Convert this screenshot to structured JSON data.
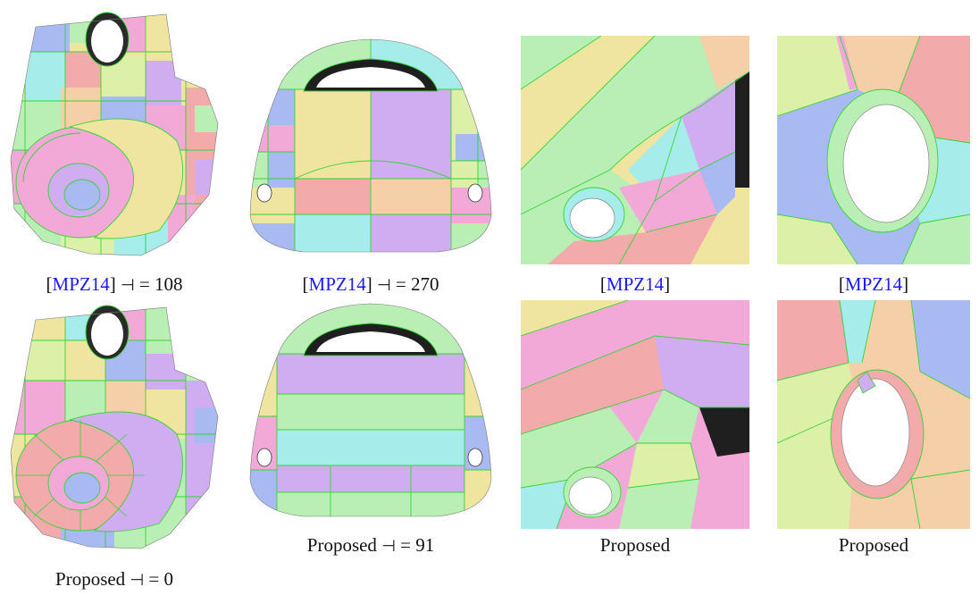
{
  "captions": {
    "r1c1": {
      "cite": "MPZ14",
      "symbol": "⊣",
      "value": "= 108"
    },
    "r1c2": {
      "cite": "MPZ14",
      "symbol": "⊣",
      "value": "= 270"
    },
    "r1c3": {
      "cite": "MPZ14"
    },
    "r1c4": {
      "cite": "MPZ14"
    },
    "r2c1": {
      "method": "Proposed",
      "symbol": "⊣",
      "value": "= 0"
    },
    "r2c2": {
      "method": "Proposed",
      "symbol": "⊣",
      "value": "= 91"
    },
    "r2c3": {
      "method": "Proposed"
    },
    "r2c4": {
      "method": "Proposed"
    }
  },
  "palette": {
    "seam": "#35d435",
    "outline": "#1e1e1e",
    "pink": "#f2a9d8",
    "yellow": "#efe5a0",
    "blue": "#a9b9f2",
    "cyan": "#a5ecea",
    "green": "#b9efb4",
    "salmon": "#f2aaaa",
    "lime": "#dcf0a8",
    "peach": "#f5cfa8",
    "lilac": "#cfadf0"
  }
}
